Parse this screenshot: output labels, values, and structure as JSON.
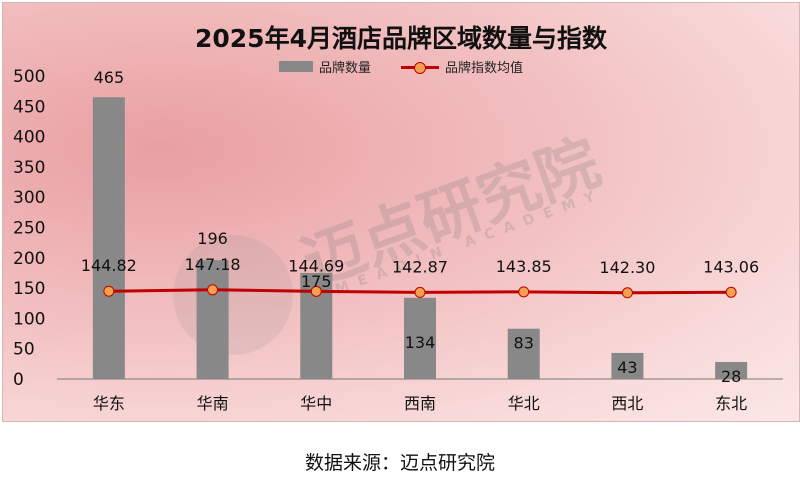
{
  "chart_data": {
    "type": "bar",
    "title": "2025年4月酒店品牌区域数量与指数",
    "categories": [
      "华东",
      "华南",
      "华中",
      "西南",
      "华北",
      "西北",
      "东北"
    ],
    "series": [
      {
        "name": "品牌数量",
        "type": "bar",
        "values": [
          465,
          196,
          175,
          134,
          83,
          43,
          28
        ],
        "labels": [
          "465",
          "196",
          "175",
          "134",
          "83",
          "43",
          "28"
        ]
      },
      {
        "name": "品牌指数均值",
        "type": "line",
        "values": [
          144.82,
          147.18,
          144.69,
          142.87,
          143.85,
          142.3,
          143.06
        ],
        "labels": [
          "144.82",
          "147.18",
          "144.69",
          "142.87",
          "143.85",
          "142.30",
          "143.06"
        ]
      }
    ],
    "y_ticks": [
      "0",
      "50",
      "100",
      "150",
      "200",
      "250",
      "300",
      "350",
      "400",
      "450",
      "500"
    ],
    "ylim": [
      0,
      500
    ],
    "legend_position": "top",
    "grid": false,
    "colors": {
      "bar": "#888888",
      "line": "#c00000",
      "marker": "#f5a04e"
    }
  },
  "watermark": {
    "main": "迈点研究院",
    "sub": "MEADIN ACADEMY"
  },
  "source": "数据来源：迈点研究院"
}
